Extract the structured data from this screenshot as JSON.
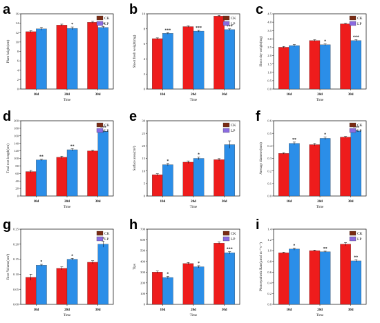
{
  "colors": {
    "ck": "#ee1c1c",
    "lp": "#2b8ee8",
    "ck_legend": "#7a2b14",
    "lp_legend": "#8a6be0"
  },
  "chart_data": [
    {
      "type": "bar",
      "letter": "a",
      "xlabel": "Time",
      "ylabel": "Plant height(cm)",
      "categories": [
        "10d",
        "20d",
        "30d"
      ],
      "ylim": [
        0,
        16
      ],
      "yticks": [
        0,
        2,
        4,
        6,
        8,
        10,
        12,
        14,
        16
      ],
      "legend": [
        "CK",
        "LP"
      ],
      "legend_position": "top-right",
      "series": [
        {
          "name": "CK",
          "values": [
            12.2,
            13.6,
            14.2
          ],
          "errors": [
            0.2,
            0.2,
            0.2
          ]
        },
        {
          "name": "LP",
          "values": [
            12.8,
            12.9,
            13.1
          ],
          "errors": [
            0.3,
            0.3,
            0.2
          ]
        }
      ],
      "significance": [
        "",
        "*",
        "**"
      ]
    },
    {
      "type": "bar",
      "letter": "b",
      "xlabel": "Time",
      "ylabel": "Shoot fresh weight(mg)",
      "categories": [
        "10d",
        "20d",
        "30d"
      ],
      "ylim": [
        0,
        10
      ],
      "yticks": [
        0,
        2,
        4,
        6,
        8,
        10
      ],
      "legend": [
        "CK",
        "LP"
      ],
      "legend_position": "top-right",
      "series": [
        {
          "name": "CK",
          "values": [
            6.7,
            8.3,
            9.7
          ],
          "errors": [
            0.1,
            0.1,
            0.1
          ]
        },
        {
          "name": "LP",
          "values": [
            7.4,
            7.7,
            7.9
          ],
          "errors": [
            0.1,
            0.1,
            0.1
          ]
        }
      ],
      "significance": [
        "***",
        "***",
        "***"
      ]
    },
    {
      "type": "bar",
      "letter": "c",
      "xlabel": "Time",
      "ylabel": "Shoot dry weight(mg)",
      "categories": [
        "10d",
        "20d",
        "30d"
      ],
      "ylim": [
        0,
        4.5
      ],
      "yticks": [
        0,
        0.5,
        1.0,
        1.5,
        2.0,
        2.5,
        3.0,
        3.5,
        4.0,
        4.5
      ],
      "legend": [
        "CK",
        "LP"
      ],
      "legend_position": "top-right",
      "series": [
        {
          "name": "CK",
          "values": [
            2.5,
            2.9,
            3.9
          ],
          "errors": [
            0.05,
            0.05,
            0.03
          ]
        },
        {
          "name": "LP",
          "values": [
            2.6,
            2.65,
            2.9
          ],
          "errors": [
            0.06,
            0.05,
            0.05
          ]
        }
      ],
      "significance": [
        "",
        "*",
        "***"
      ]
    },
    {
      "type": "bar",
      "letter": "d",
      "xlabel": "Time",
      "ylabel": "Total root length(cm)",
      "categories": [
        "10d",
        "20d",
        "30d"
      ],
      "ylim": [
        0,
        200
      ],
      "yticks": [
        0,
        20,
        40,
        60,
        80,
        100,
        120,
        140,
        160,
        180,
        200
      ],
      "legend": [
        "CK",
        "LP"
      ],
      "legend_position": "top-right",
      "series": [
        {
          "name": "CK",
          "values": [
            65,
            103,
            120
          ],
          "errors": [
            3,
            3,
            2
          ]
        },
        {
          "name": "LP",
          "values": [
            96,
            123,
            172
          ],
          "errors": [
            2,
            3,
            3
          ]
        }
      ],
      "significance": [
        "**",
        "**",
        "***"
      ]
    },
    {
      "type": "bar",
      "letter": "e",
      "xlabel": "Time",
      "ylabel": "Surface area(cm²)",
      "categories": [
        "10d",
        "20d",
        "30d"
      ],
      "ylim": [
        0,
        30
      ],
      "yticks": [
        0,
        5,
        10,
        15,
        20,
        25,
        30
      ],
      "legend": [
        "CK",
        "LP"
      ],
      "legend_position": "top-right",
      "series": [
        {
          "name": "CK",
          "values": [
            8.5,
            13.5,
            14.5
          ],
          "errors": [
            0.4,
            0.5,
            0.4
          ]
        },
        {
          "name": "LP",
          "values": [
            12.5,
            15.0,
            20.5
          ],
          "errors": [
            0.5,
            0.5,
            1.5
          ]
        }
      ],
      "significance": [
        "*",
        "*",
        ""
      ]
    },
    {
      "type": "bar",
      "letter": "f",
      "xlabel": "Time",
      "ylabel": "Average diameter(mm)",
      "categories": [
        "10d",
        "20d",
        "30d"
      ],
      "ylim": [
        0,
        0.6
      ],
      "yticks": [
        0,
        0.1,
        0.2,
        0.3,
        0.4,
        0.5,
        0.6
      ],
      "legend": [
        "CK",
        "LP"
      ],
      "legend_position": "top-right",
      "series": [
        {
          "name": "CK",
          "values": [
            0.34,
            0.41,
            0.47
          ],
          "errors": [
            0.005,
            0.01,
            0.005
          ]
        },
        {
          "name": "LP",
          "values": [
            0.42,
            0.46,
            0.52
          ],
          "errors": [
            0.01,
            0.01,
            0.005
          ]
        }
      ],
      "significance": [
        "**",
        "*",
        "***"
      ]
    },
    {
      "type": "bar",
      "letter": "g",
      "xlabel": "Time",
      "ylabel": "Root Volume(cm³)",
      "categories": [
        "10d",
        "20d",
        "30d"
      ],
      "ylim": [
        0,
        0.25
      ],
      "yticks": [
        0,
        0.05,
        0.1,
        0.15,
        0.2,
        0.25
      ],
      "legend": [
        "CK",
        "LP"
      ],
      "legend_position": "top-right",
      "series": [
        {
          "name": "CK",
          "values": [
            0.09,
            0.12,
            0.14
          ],
          "errors": [
            0.01,
            0.005,
            0.005
          ]
        },
        {
          "name": "LP",
          "values": [
            0.13,
            0.15,
            0.2
          ],
          "errors": [
            0.003,
            0.003,
            0.01
          ]
        }
      ],
      "significance": [
        "*",
        "*",
        "*"
      ]
    },
    {
      "type": "bar",
      "letter": "h",
      "xlabel": "Time",
      "ylabel": "Tips",
      "categories": [
        "10d",
        "20d",
        "30d"
      ],
      "ylim": [
        0,
        700
      ],
      "yticks": [
        0,
        100,
        200,
        300,
        400,
        500,
        600,
        700
      ],
      "legend": [
        "CK",
        "LP"
      ],
      "legend_position": "top-right",
      "series": [
        {
          "name": "CK",
          "values": [
            300,
            380,
            570
          ],
          "errors": [
            10,
            10,
            10
          ]
        },
        {
          "name": "LP",
          "values": [
            250,
            350,
            480
          ],
          "errors": [
            10,
            10,
            10
          ]
        }
      ],
      "significance": [
        "*",
        "*",
        "***"
      ]
    },
    {
      "type": "bar",
      "letter": "i",
      "xlabel": "Time",
      "ylabel": "Photosynthetic Rate(μmol m⁻² s⁻¹)",
      "categories": [
        "10d",
        "20d",
        "30d"
      ],
      "ylim": [
        0,
        1.4
      ],
      "yticks": [
        0,
        0.2,
        0.4,
        0.6,
        0.8,
        1.0,
        1.2,
        1.4
      ],
      "legend": [
        "CK",
        "LP"
      ],
      "legend_position": "top-right",
      "series": [
        {
          "name": "CK",
          "values": [
            0.96,
            1.0,
            1.12
          ],
          "errors": [
            0.01,
            0.01,
            0.03
          ]
        },
        {
          "name": "LP",
          "values": [
            1.03,
            0.98,
            0.81
          ],
          "errors": [
            0.02,
            0.01,
            0.02
          ]
        }
      ],
      "significance": [
        "*",
        "**",
        "**"
      ]
    }
  ]
}
